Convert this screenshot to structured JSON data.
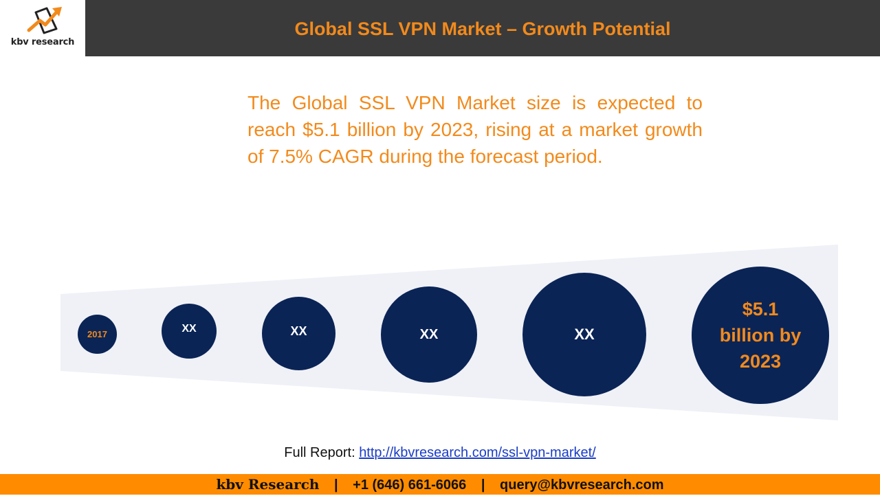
{
  "logo": {
    "text": "kbv research",
    "icon": "arrow-chart-icon"
  },
  "header": {
    "title": "Global SSL VPN Market – Growth Potential"
  },
  "summary": {
    "text": "The Global SSL VPN Market size is expected to reach $5.1 billion by 2023, rising at a market growth of 7.5% CAGR during the forecast period."
  },
  "timeline": {
    "bubbles": [
      {
        "label": "2017"
      },
      {
        "label": "XX"
      },
      {
        "label": "XX"
      },
      {
        "label": "XX"
      },
      {
        "label": "XX"
      },
      {
        "line1": "$5.1",
        "line2": "billion by",
        "line3": "2023"
      }
    ]
  },
  "report": {
    "prefix": "Full Report:",
    "link": "http://kbvresearch.com/ssl-vpn-market/"
  },
  "footer": {
    "brand": "kbv Research",
    "sep1": "|",
    "phone": "+1 (646) 661-6066",
    "sep2": "|",
    "email": "query@kbvresearch.com"
  },
  "colors": {
    "orange": "#f28a1c",
    "navy": "#0b2456",
    "header_bg": "#3a3a3a",
    "footer_bg": "#ff8c00",
    "link": "#1a3cc4"
  }
}
